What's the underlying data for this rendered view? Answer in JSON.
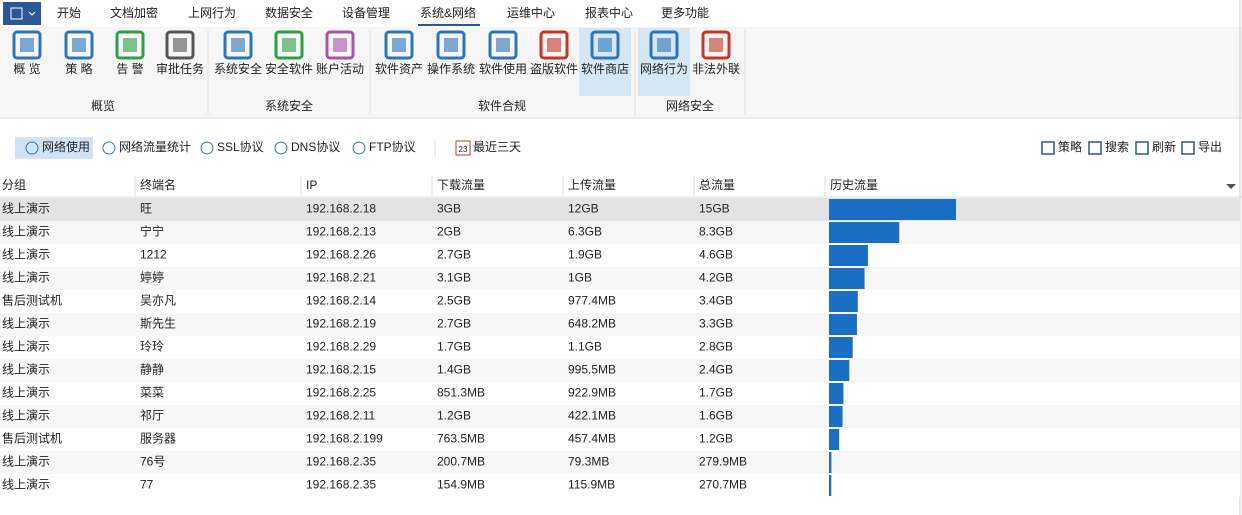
{
  "menu": {
    "items": [
      "开始",
      "文档加密",
      "上网行为",
      "数据安全",
      "设备管理",
      "系统&网络",
      "运维中心",
      "报表中心",
      "更多功能"
    ],
    "active": 5
  },
  "ribbon": {
    "groups": [
      {
        "label": "概览",
        "items": [
          "概 览",
          "策 略",
          "告 警",
          "审批任务"
        ]
      },
      {
        "label": "系统安全",
        "items": [
          "系统安全",
          "安全软件",
          "账户活动"
        ]
      },
      {
        "label": "软件合规",
        "items": [
          "软件资产",
          "操作系统",
          "软件使用",
          "盗版软件",
          "软件商店"
        ]
      },
      {
        "label": "网络安全",
        "items": [
          "网络行为",
          "非法外联"
        ]
      }
    ]
  },
  "toolbar": {
    "tabs": [
      "网络使用",
      "网络流量统计",
      "SSL协议",
      "DNS协议",
      "FTP协议"
    ],
    "calendar_day": "23",
    "range": "最近三天",
    "actions": [
      "策略",
      "搜索",
      "刷新",
      "导出"
    ]
  },
  "table": {
    "columns": [
      "分组",
      "终端名",
      "IP",
      "下载流量",
      "上传流量",
      "总流量",
      "历史流量"
    ],
    "rows": [
      [
        "线上演示",
        "旺",
        "192.168.2.18",
        "3GB",
        "12GB",
        "15GB"
      ],
      [
        "线上演示",
        "宁宁",
        "192.168.2.13",
        "2GB",
        "6.3GB",
        "8.3GB"
      ],
      [
        "线上演示",
        "1212",
        "192.168.2.26",
        "2.7GB",
        "1.9GB",
        "4.6GB"
      ],
      [
        "线上演示",
        "婷婷",
        "192.168.2.21",
        "3.1GB",
        "1GB",
        "4.2GB"
      ],
      [
        "售后测试机",
        "吴亦凡",
        "192.168.2.14",
        "2.5GB",
        "977.4MB",
        "3.4GB"
      ],
      [
        "线上演示",
        "斯先生",
        "192.168.2.19",
        "2.7GB",
        "648.2MB",
        "3.3GB"
      ],
      [
        "线上演示",
        "玲玲",
        "192.168.2.29",
        "1.7GB",
        "1.1GB",
        "2.8GB"
      ],
      [
        "线上演示",
        "静静",
        "192.168.2.15",
        "1.4GB",
        "995.5MB",
        "2.4GB"
      ],
      [
        "线上演示",
        "菜菜",
        "192.168.2.25",
        "851.3MB",
        "922.9MB",
        "1.7GB"
      ],
      [
        "线上演示",
        "祁厅",
        "192.168.2.11",
        "1.2GB",
        "422.1MB",
        "1.6GB"
      ],
      [
        "售后测试机",
        "服务器",
        "192.168.2.199",
        "763.5MB",
        "457.4MB",
        "1.2GB"
      ],
      [
        "线上演示",
        "76号",
        "192.168.2.35",
        "200.7MB",
        "79.3MB",
        "279.9MB"
      ],
      [
        "线上演示",
        "77",
        "192.168.2.35",
        "154.9MB",
        "115.9MB",
        "270.7MB"
      ]
    ],
    "history": [
      15,
      8.3,
      4.6,
      4.2,
      3.4,
      3.3,
      2.8,
      2.4,
      1.7,
      1.6,
      1.2,
      0.28,
      0.27
    ]
  }
}
